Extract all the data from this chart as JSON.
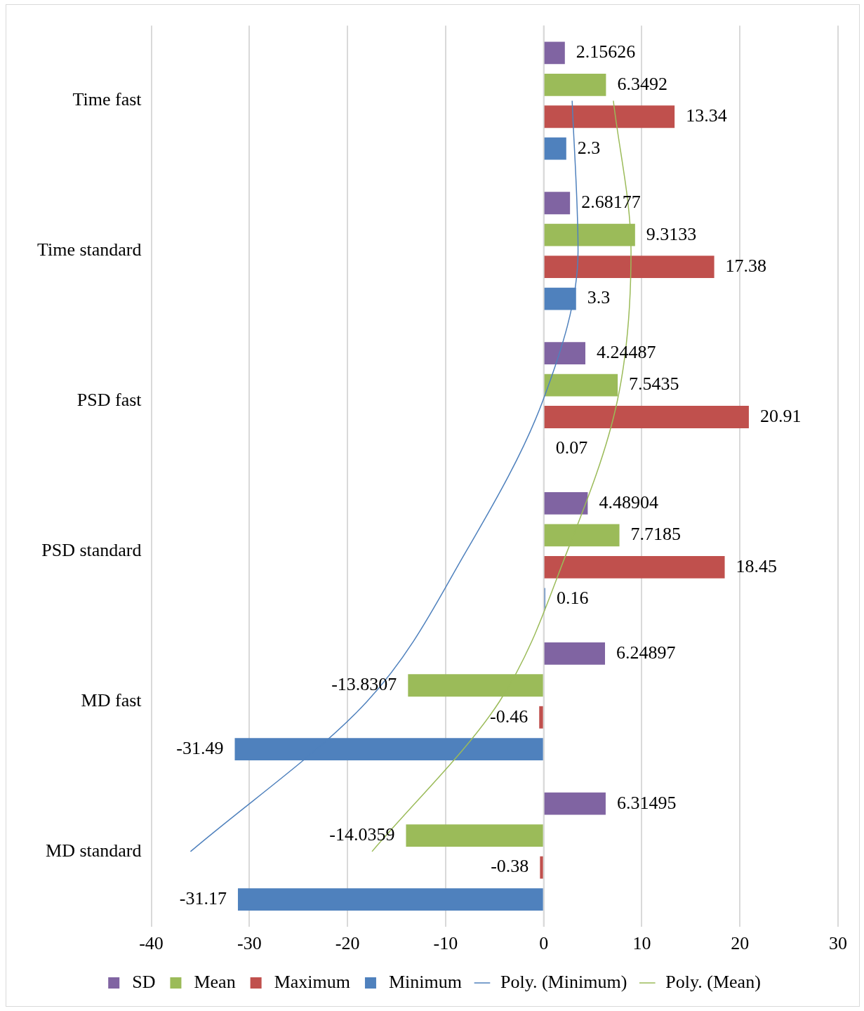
{
  "chart_data": {
    "type": "bar",
    "orientation": "horizontal",
    "categories": [
      "Time fast",
      "Time standard",
      "PSD fast",
      "PSD standard",
      "MD fast",
      "MD standard"
    ],
    "series": [
      {
        "name": "SD",
        "color": "#8064a2",
        "values": [
          2.15626,
          2.68177,
          4.24487,
          4.48904,
          6.24897,
          6.31495
        ],
        "value_labels": [
          "2.15626",
          "2.68177",
          "4.24487",
          "4.48904",
          "6.24897",
          "6.31495"
        ]
      },
      {
        "name": "Mean",
        "color": "#9bbb59",
        "values": [
          6.3492,
          9.3133,
          7.5435,
          7.7185,
          -13.8307,
          -14.0359
        ],
        "value_labels": [
          "6.3492",
          "9.3133",
          "7.5435",
          "7.7185",
          "-13.8307",
          "-14.0359"
        ]
      },
      {
        "name": "Maximum",
        "color": "#c0504d",
        "values": [
          13.34,
          17.38,
          20.91,
          18.45,
          -0.46,
          -0.38
        ],
        "value_labels": [
          "13.34",
          "17.38",
          "20.91",
          "18.45",
          "-0.46",
          "-0.38"
        ]
      },
      {
        "name": "Minimum",
        "color": "#4f81bd",
        "values": [
          2.3,
          3.3,
          0.07,
          0.16,
          -31.49,
          -31.17
        ],
        "value_labels": [
          "2.3",
          "3.3",
          "0.07",
          "0.16",
          "-31.49",
          "-31.17"
        ]
      },
      {
        "name": "Poly. (Minimum)",
        "type": "line",
        "color": "#4f81bd",
        "values": [
          2.9,
          3.5,
          -0.1,
          -7.9,
          -18,
          -36
        ]
      },
      {
        "name": "Poly. (Mean)",
        "type": "line",
        "color": "#9bbb59",
        "values": [
          7.1,
          8.9,
          7.5,
          2.4,
          -4.5,
          -17.5
        ]
      }
    ],
    "xlim": [
      -40,
      30
    ],
    "xticks": [
      -40,
      -30,
      -20,
      -10,
      0,
      10,
      20,
      30
    ],
    "grid": "x",
    "legend": "bottom",
    "marker": "none"
  }
}
